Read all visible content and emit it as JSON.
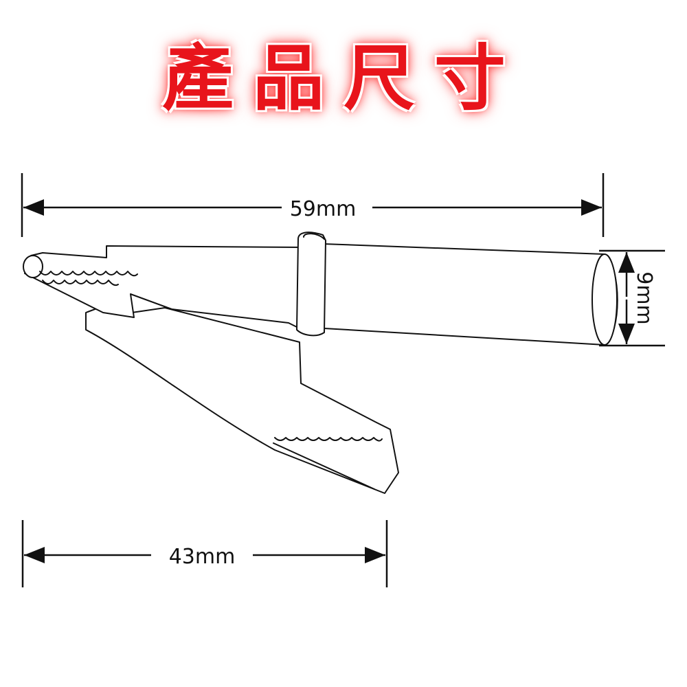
{
  "title": "產品尺寸",
  "dimensions": {
    "overall_length": "59mm",
    "jaw_length": "43mm",
    "diameter": "9mm"
  },
  "colors": {
    "title": "#e8141b",
    "line": "#111111",
    "background": "#ffffff"
  }
}
